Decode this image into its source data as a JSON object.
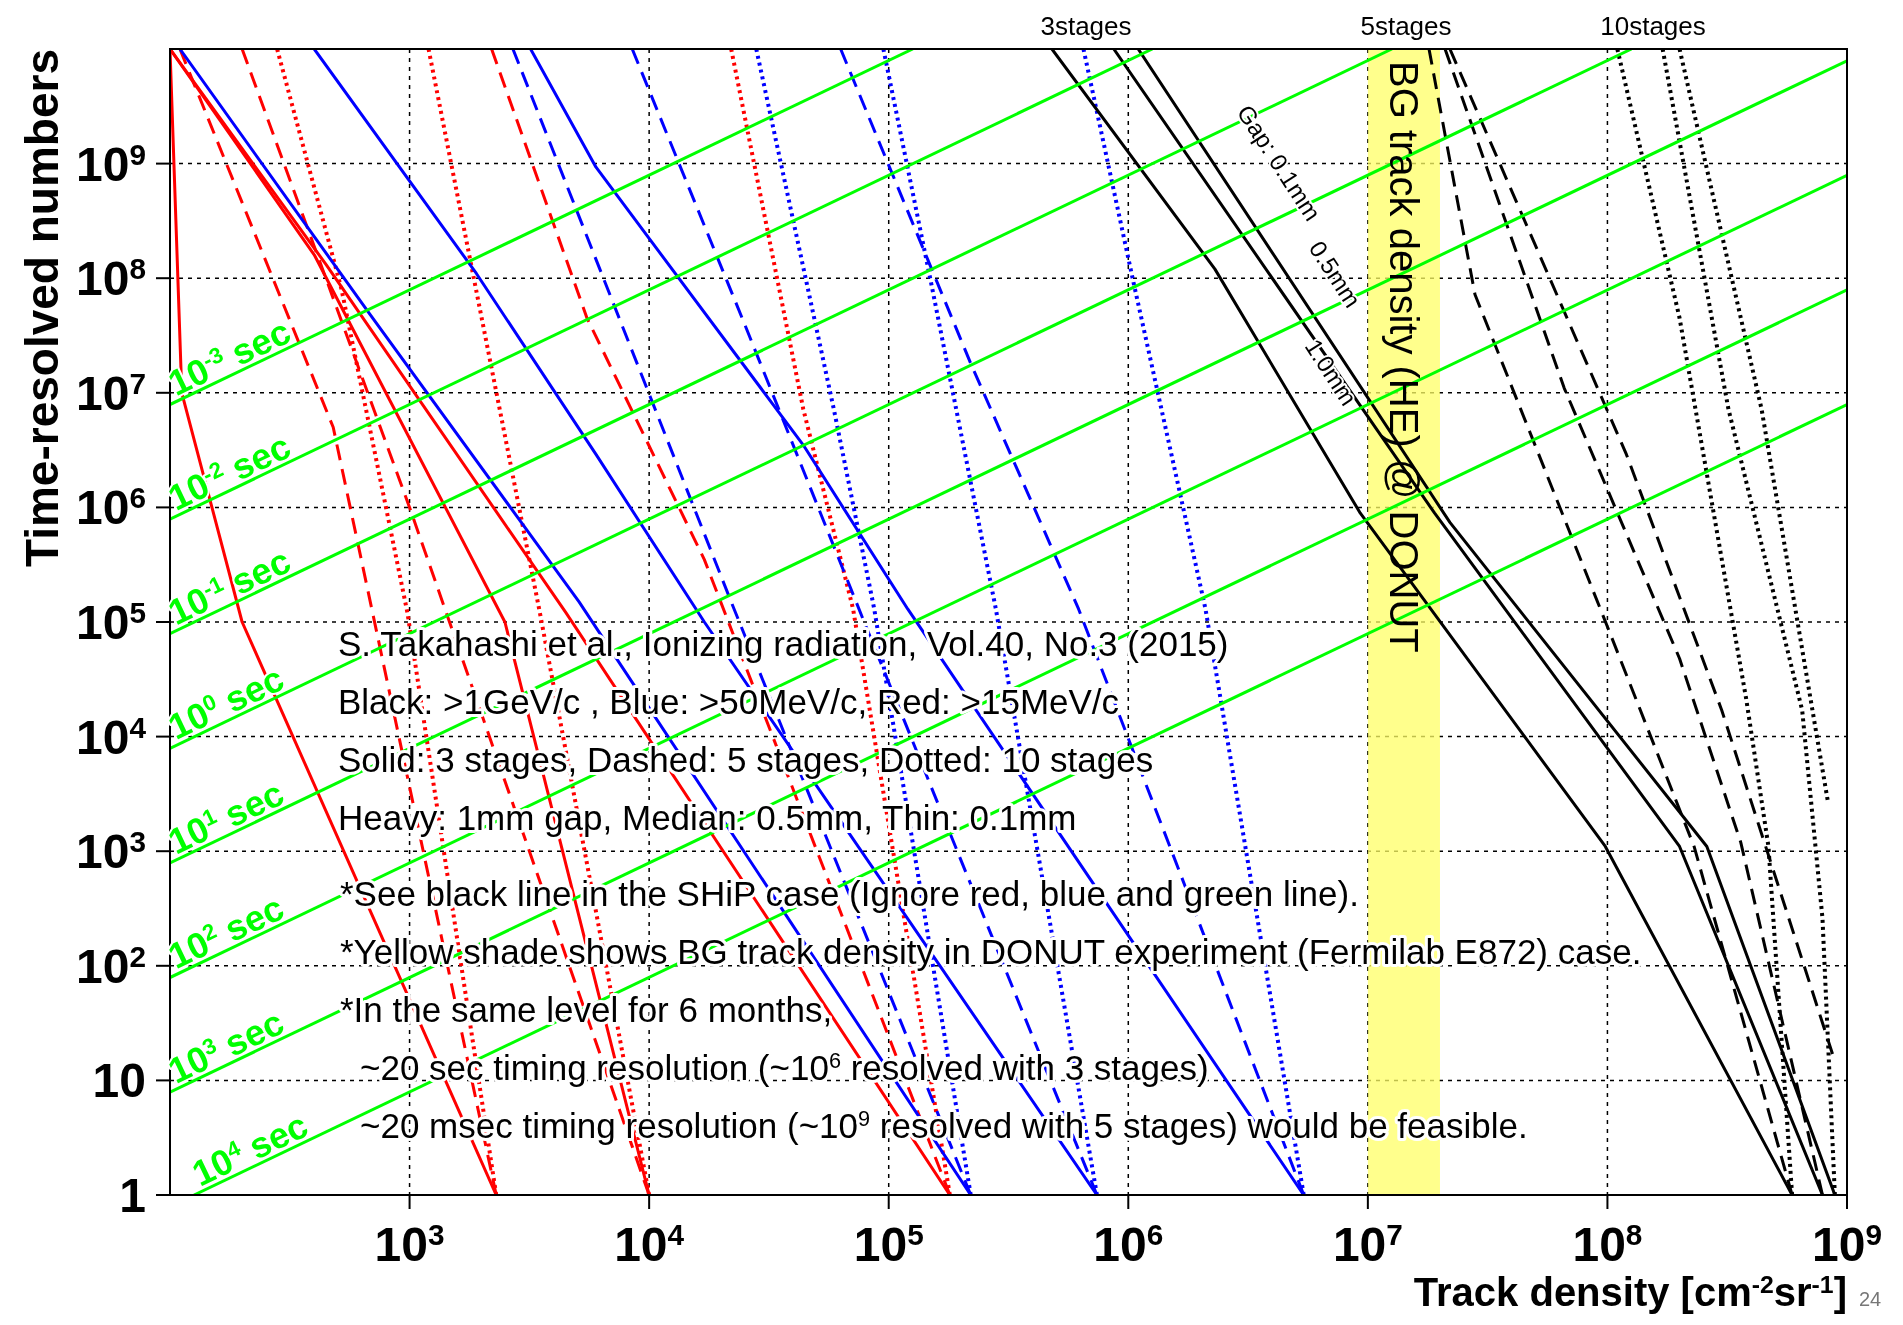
{
  "chart_data": {
    "type": "line",
    "xlabel": "Track density [cm$^{-2}$sr$^{-1}$]",
    "ylabel": "Time-resolved numbers",
    "log": "xy",
    "grid": true,
    "xlim": [
      100,
      1000000000
    ],
    "ylim": [
      1,
      10000000000
    ],
    "xticks": [
      {
        "value": 1000,
        "label": "10$^{3}$"
      },
      {
        "value": 10000,
        "label": "10$^{4}$"
      },
      {
        "value": 100000,
        "label": "10$^{5}$"
      },
      {
        "value": 1000000,
        "label": "10$^{6}$"
      },
      {
        "value": 10000000,
        "label": "10$^{7}$"
      },
      {
        "value": 100000000,
        "label": "10$^{8}$"
      },
      {
        "value": 1000000000,
        "label": "10$^{9}$"
      }
    ],
    "yticks": [
      1,
      10,
      {
        "value": 100,
        "label": "10$^{2}$"
      },
      {
        "value": 1000,
        "label": "10$^{3}$"
      },
      {
        "value": 10000,
        "label": "10$^{4}$"
      },
      {
        "value": 100000,
        "label": "10$^{5}$"
      },
      {
        "value": 1000000,
        "label": "10$^{6}$"
      },
      {
        "value": 10000000,
        "label": "10$^{7}$"
      },
      {
        "value": 100000000,
        "label": "10$^{8}$"
      },
      {
        "value": 1000000000,
        "label": "10$^{9}$"
      }
    ],
    "bands": [
      {
        "axis": "x",
        "from": 10000000,
        "to": 20000000,
        "label": "BG track density (HE) @ DONUT",
        "color": "#ffff66"
      }
    ],
    "series": [
      {
        "color": "#ff0000",
        "line_style": "solid",
        "x": [
          100,
          112,
          200,
          2300
        ],
        "values": [
          10000000000.0,
          10000000.0,
          100000.0,
          1
        ]
      },
      {
        "color": "#ff0000",
        "line_style": "solid",
        "x": [
          100,
          400,
          2500,
          10000
        ],
        "values": [
          10000000000.0,
          160000000.0,
          100000.0,
          1
        ]
      },
      {
        "color": "#ff0000",
        "line_style": "solid",
        "x": [
          100,
          450,
          4500,
          180000
        ],
        "values": [
          10000000000.0,
          130000000.0,
          120000.0,
          1
        ]
      },
      {
        "color": "#ff0000",
        "line_style": "dashed",
        "x": [
          110,
          480,
          2300
        ],
        "values": [
          10000000000.0,
          5000000.0,
          1
        ]
      },
      {
        "color": "#ff0000",
        "line_style": "dashed",
        "x": [
          200,
          1000,
          10000
        ],
        "values": [
          10000000000.0,
          1000000.0,
          1
        ]
      },
      {
        "color": "#ff0000",
        "line_style": "dashed",
        "x": [
          2200,
          5500,
          17000,
          180000
        ],
        "values": [
          10000000000.0,
          45000000.0,
          350000.0,
          1
        ]
      },
      {
        "color": "#ff0000",
        "line_style": "dotted",
        "x": [
          280,
          520,
          980,
          2300
        ],
        "values": [
          10000000000.0,
          80000000.0,
          120000.0,
          1
        ]
      },
      {
        "color": "#ff0000",
        "line_style": "dotted",
        "x": [
          1200,
          3500,
          10000
        ],
        "values": [
          10000000000.0,
          120000.0,
          1
        ]
      },
      {
        "color": "#ff0000",
        "line_style": "dotted",
        "x": [
          22000,
          44000,
          71000,
          180000
        ],
        "values": [
          10000000000.0,
          7200000.0,
          130000.0,
          1
        ]
      },
      {
        "color": "#0000ff",
        "line_style": "solid",
        "x": [
          110,
          680,
          5100,
          220000
        ],
        "values": [
          10000000000.0,
          49000000.0,
          150000.0,
          1
        ]
      },
      {
        "color": "#0000ff",
        "line_style": "solid",
        "x": [
          400,
          1900,
          6000,
          17000,
          740000
        ],
        "values": [
          10000000000.0,
          110000000.0,
          2900000.0,
          100000.0,
          1
        ]
      },
      {
        "color": "#0000ff",
        "line_style": "solid",
        "x": [
          3200,
          6000,
          44000,
          120000,
          5400000
        ],
        "values": [
          10000000000.0,
          930000000.0,
          3500000.0,
          130000.0,
          1
        ]
      },
      {
        "color": "#0000ff",
        "line_style": "dashed",
        "x": [
          2700,
          22000,
          220000
        ],
        "values": [
          10000000000.0,
          150000.0,
          1
        ]
      },
      {
        "color": "#0000ff",
        "line_style": "dashed",
        "x": [
          8500,
          25000,
          79000,
          740000
        ],
        "values": [
          10000000000.0,
          40000000.0,
          100000.0,
          1
        ]
      },
      {
        "color": "#0000ff",
        "line_style": "dashed",
        "x": [
          63000,
          220000,
          620000,
          5400000
        ],
        "values": [
          10000000000.0,
          18000000.0,
          130000.0,
          1
        ]
      },
      {
        "color": "#0000ff",
        "line_style": "dotted",
        "x": [
          28000,
          59000,
          87000,
          220000
        ],
        "values": [
          10000000000.0,
          7200000.0,
          130000.0,
          1
        ]
      },
      {
        "color": "#0000ff",
        "line_style": "dotted",
        "x": [
          95000,
          150000,
          280000,
          740000
        ],
        "values": [
          10000000000.0,
          93000000.0,
          130000.0,
          1
        ]
      },
      {
        "color": "#0000ff",
        "line_style": "dotted",
        "x": [
          650000,
          1050000,
          2100000,
          5400000
        ],
        "values": [
          10000000000.0,
          93000000.0,
          130000.0,
          1
        ]
      },
      {
        "color": "#000000",
        "line_style": "solid",
        "x": [
          480000,
          2300000,
          9300000,
          98000000,
          590000000
        ],
        "values": [
          10000000000.0,
          120000000.0,
          890000.0,
          1100,
          1
        ]
      },
      {
        "color": "#000000",
        "line_style": "solid",
        "x": [
          870000,
          19000000,
          200000000,
          790000000
        ],
        "values": [
          10000000000.0,
          890000.0,
          1100,
          1
        ]
      },
      {
        "color": "#000000",
        "line_style": "solid",
        "x": [
          1100000,
          22000000,
          260000000,
          890000000
        ],
        "values": [
          10000000000.0,
          740000.0,
          1100,
          1
        ]
      },
      {
        "color": "#000000",
        "line_style": "dashed",
        "x": [
          18000000,
          28000000,
          100000000,
          230000000,
          590000000
        ],
        "values": [
          10000000000.0,
          72000000.0,
          91000.0,
          1100,
          1
        ]
      },
      {
        "color": "#000000",
        "line_style": "dashed",
        "x": [
          21000000,
          66000000,
          200000000,
          360000000,
          790000000
        ],
        "values": [
          10000000000.0,
          11000000.0,
          48000.0,
          1200,
          1
        ]
      },
      {
        "color": "#000000",
        "line_style": "dashed",
        "x": [
          22000000,
          120000000,
          300000000,
          870000000
        ],
        "values": [
          10000000000.0,
          2900000.0,
          17000.0,
          17
        ]
      },
      {
        "color": "#000000",
        "line_style": "dotted",
        "x": [
          110000000,
          200000000,
          380000000,
          470000000,
          590000000
        ],
        "values": [
          10000000000.0,
          45000000.0,
          21000.0,
          1100,
          1
        ]
      },
      {
        "color": "#000000",
        "line_style": "dotted",
        "x": [
          170000000,
          320000000,
          650000000,
          790000000,
          890000000
        ],
        "values": [
          10000000000.0,
          7200000.0,
          17000.0,
          260,
          1
        ]
      },
      {
        "color": "#000000",
        "line_style": "dotted",
        "x": [
          200000000,
          440000000,
          830000000
        ],
        "values": [
          10000000000.0,
          7200000.0,
          2800
        ]
      },
      {
        "name": "10$^{-3}$ sec",
        "color": "#00ff00",
        "line_style": "solid",
        "x": [
          100,
          126000
        ],
        "values": [
          7900000.0,
          10000000000.0
        ]
      },
      {
        "name": "10$^{-2}$ sec",
        "color": "#00ff00",
        "line_style": "solid",
        "x": [
          100,
          1260000
        ],
        "values": [
          790000.0,
          10000000000.0
        ]
      },
      {
        "name": "10$^{-1}$ sec",
        "color": "#00ff00",
        "line_style": "solid",
        "x": [
          100,
          12600000
        ],
        "values": [
          79000.0,
          10000000000.0
        ]
      },
      {
        "name": "10$^{0}$ sec",
        "color": "#00ff00",
        "line_style": "solid",
        "x": [
          100,
          126000000
        ],
        "values": [
          7900,
          10000000000.0
        ]
      },
      {
        "name": "10$^{1}$ sec",
        "color": "#00ff00",
        "line_style": "solid",
        "x": [
          100,
          1000000000
        ],
        "values": [
          790,
          7900000000.0
        ]
      },
      {
        "name": "10$^{2}$ sec",
        "color": "#00ff00",
        "line_style": "solid",
        "x": [
          100,
          1000000000
        ],
        "values": [
          79,
          790000000.0
        ]
      },
      {
        "name": "10$^{3}$ sec",
        "color": "#00ff00",
        "line_style": "solid",
        "x": [
          100,
          1000000000
        ],
        "values": [
          7.9,
          79000000.0
        ]
      },
      {
        "name": "10$^{4}$ sec",
        "color": "#00ff00",
        "line_style": "solid",
        "x": [
          126,
          1000000000
        ],
        "values": [
          1,
          7900000.0
        ]
      }
    ],
    "annotations": [
      "3stages",
      "5stages",
      "10stages",
      "Gap: 0.1mm",
      "0.5mm",
      "1.0mm",
      "S. Takahashi et al., Ionizing radiation, Vol.40, No.3 (2015)",
      "Black: >1GeV/c , Blue: >50MeV/c, Red: >15MeV/c",
      "Solid: 3 stages, Dashed: 5 stages, Dotted: 10 stages",
      "Heavy: 1mm gap, Median: 0.5mm, Thin: 0.1mm",
      "*See black line in the SHiP case (Ignore red, blue and green line).",
      "*Yellow shade shows BG track density in DONUT experiment (Fermilab E872) case.",
      "*In the same level for 6 months,",
      "~20 sec timing resolution (~10$^{6}$ resolved with 3 stages)",
      "~20 msec timing resolution (~10$^{9}$ resolved with 5 stages) would be feasible.",
      "24"
    ]
  }
}
